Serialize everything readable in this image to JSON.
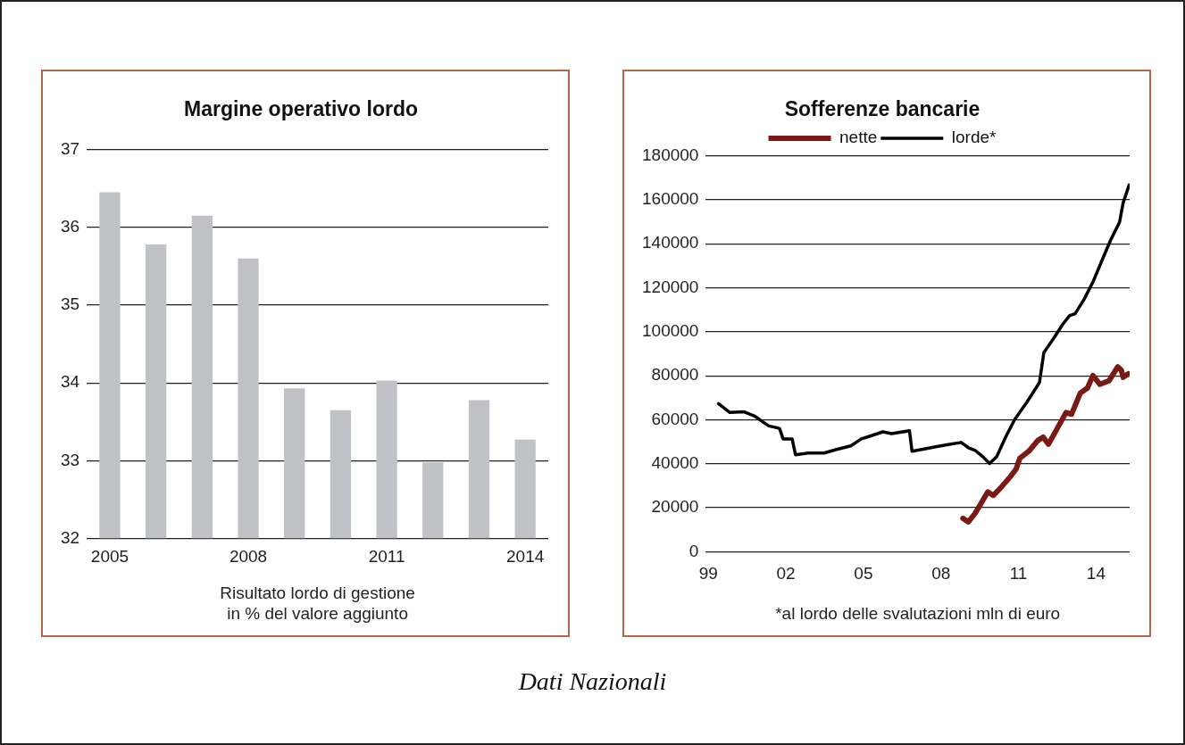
{
  "chart_data": [
    {
      "type": "bar",
      "title": "Margine operativo lordo",
      "xlabel": "Risultato lordo di gestione\nin % del valore aggiunto",
      "categories": [
        "2005",
        null,
        null,
        "2008",
        null,
        null,
        "2011",
        null,
        null,
        "2014"
      ],
      "values": [
        36.45,
        35.78,
        36.15,
        35.6,
        33.93,
        33.65,
        34.03,
        32.98,
        33.78,
        33.27
      ],
      "color": "#bfc2c6",
      "ylim": [
        32,
        37
      ],
      "yticks": [
        32,
        33,
        34,
        35,
        36,
        37
      ],
      "grid": "y",
      "legend": false
    },
    {
      "type": "line",
      "title": "Sofferenze bancarie",
      "xlabel": "*al lordo delle svalutazioni mln di euro",
      "annotations": [
        "Dati Nazionali"
      ],
      "xlim": [
        1998.9,
        2015.3
      ],
      "xticks": [
        {
          "value": 1999,
          "label": "99"
        },
        {
          "value": 2002,
          "label": "02"
        },
        {
          "value": 2005,
          "label": "05"
        },
        {
          "value": 2008,
          "label": "08"
        },
        {
          "value": 2011,
          "label": "11"
        },
        {
          "value": 2014,
          "label": "14"
        }
      ],
      "ylim": [
        0,
        180000
      ],
      "yticks": [
        0,
        20000,
        40000,
        60000,
        80000,
        100000,
        120000,
        140000,
        160000,
        180000
      ],
      "grid": "y",
      "legend": "top",
      "marker": "none",
      "line_style": "solid",
      "series": [
        {
          "name": "nette",
          "color": "#7b1a14",
          "x": [
            2008.85,
            2009.06,
            2009.33,
            2009.61,
            2009.81,
            2010.02,
            2010.29,
            2010.71,
            2010.91,
            2011.05,
            2011.4,
            2011.74,
            2011.95,
            2012.16,
            2012.5,
            2012.84,
            2013.05,
            2013.39,
            2013.67,
            2013.88,
            2014.15,
            2014.5,
            2014.84,
            2014.98,
            2015.05,
            2015.25
          ],
          "values": [
            15200,
            13600,
            17600,
            23200,
            27200,
            25600,
            28800,
            34500,
            37700,
            42500,
            45700,
            50500,
            52100,
            48900,
            56100,
            63300,
            62500,
            72100,
            74500,
            80100,
            76100,
            77700,
            84100,
            82500,
            79300,
            80900
          ]
        },
        {
          "name": "lorde*",
          "color": "#000000",
          "x": [
            1999.39,
            1999.62,
            1999.83,
            2000.38,
            2000.79,
            2001.07,
            2001.34,
            2001.75,
            2001.89,
            2002.24,
            2002.37,
            2002.86,
            2003.48,
            2003.96,
            2004.51,
            2004.92,
            2005.34,
            2005.75,
            2006.09,
            2006.78,
            2006.88,
            2007.26,
            2007.75,
            2008.23,
            2008.78,
            2009.06,
            2009.33,
            2009.61,
            2009.88,
            2010.16,
            2010.5,
            2010.85,
            2011.33,
            2011.81,
            2011.98,
            2012.36,
            2012.71,
            2012.98,
            2013.19,
            2013.53,
            2013.88,
            2014.22,
            2014.57,
            2014.91,
            2015.05,
            2015.28
          ],
          "values": [
            67300,
            65200,
            63300,
            63600,
            61700,
            59300,
            57200,
            56100,
            51300,
            51300,
            44100,
            44900,
            44900,
            46500,
            48100,
            51300,
            52900,
            54500,
            53700,
            55000,
            45700,
            46500,
            47600,
            48600,
            49700,
            47300,
            46000,
            43300,
            40100,
            43300,
            52100,
            60100,
            68100,
            76900,
            90500,
            97000,
            103400,
            107400,
            108200,
            114600,
            122600,
            132200,
            141800,
            149800,
            158700,
            166700
          ]
        }
      ]
    }
  ]
}
